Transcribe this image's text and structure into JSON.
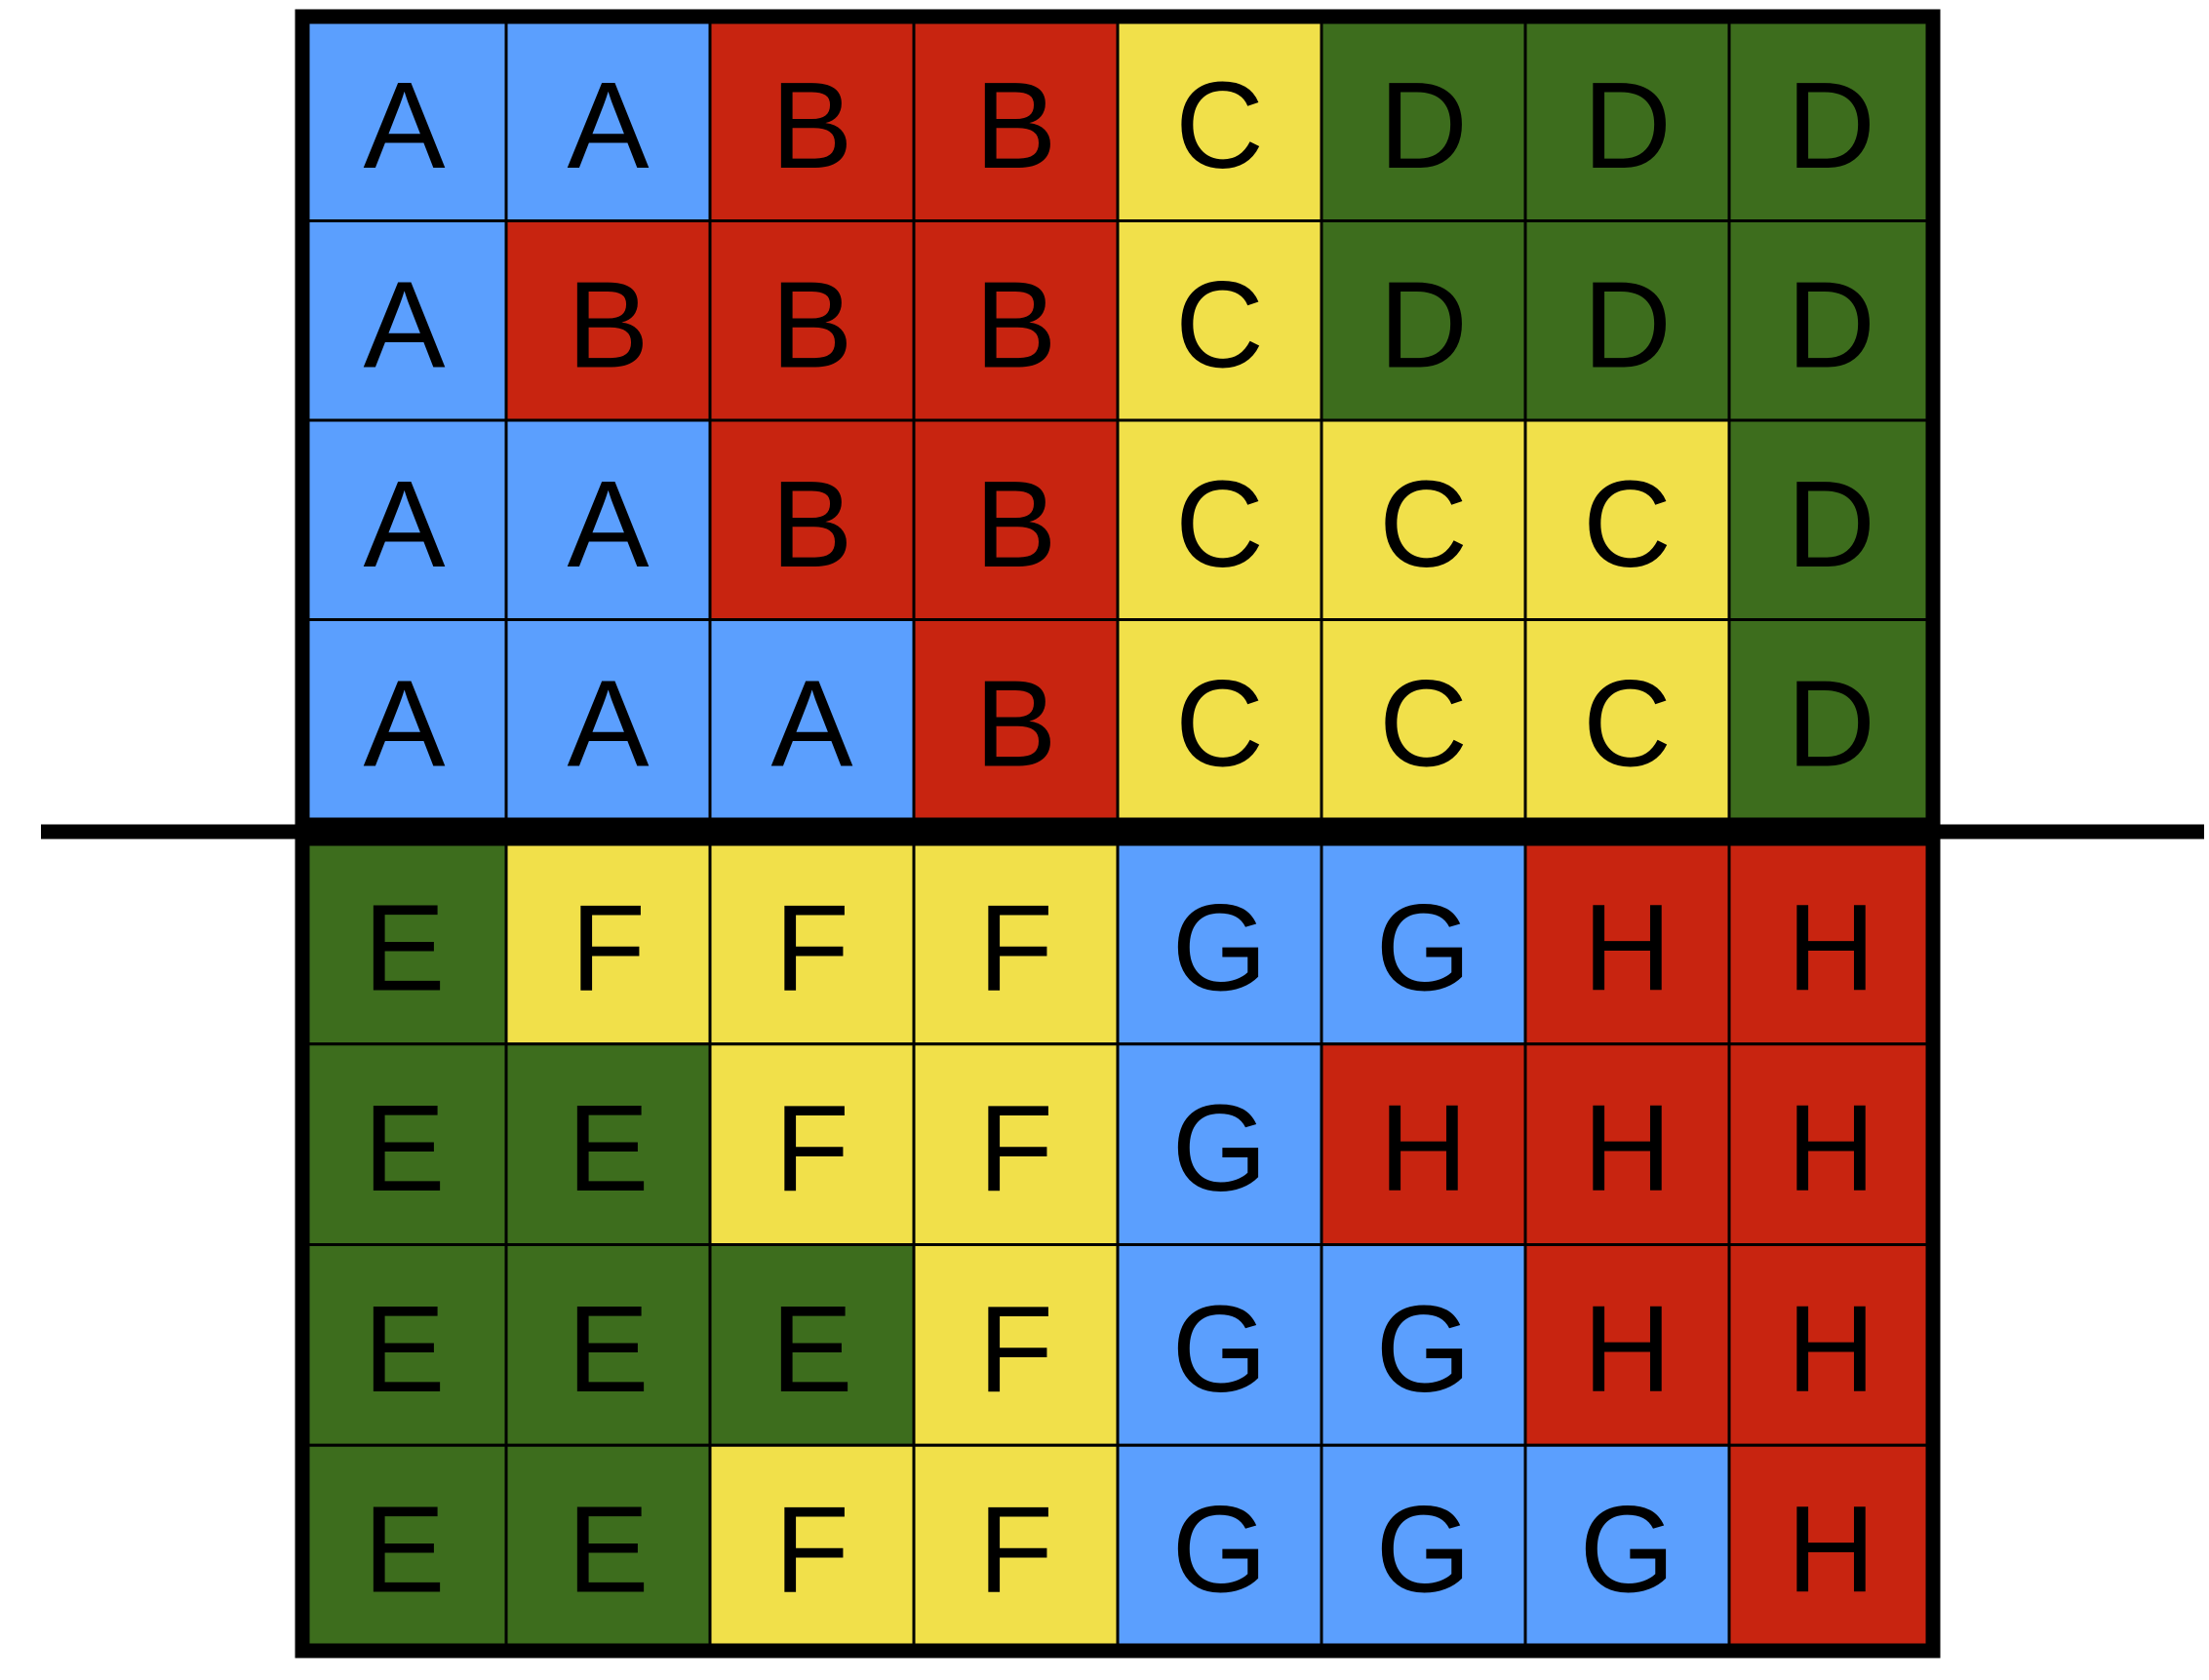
{
  "colors": {
    "blue": "#5b9ffe",
    "red": "#c82410",
    "yellow": "#f1e04a",
    "green": "#3d6d1d",
    "border": "#000000"
  },
  "grid": {
    "rows": 8,
    "cols": 8,
    "divider_after_row": 4,
    "cells": [
      [
        {
          "letter": "A",
          "color": "blue"
        },
        {
          "letter": "A",
          "color": "blue"
        },
        {
          "letter": "B",
          "color": "red"
        },
        {
          "letter": "B",
          "color": "red"
        },
        {
          "letter": "C",
          "color": "yellow"
        },
        {
          "letter": "D",
          "color": "green"
        },
        {
          "letter": "D",
          "color": "green"
        },
        {
          "letter": "D",
          "color": "green"
        }
      ],
      [
        {
          "letter": "A",
          "color": "blue"
        },
        {
          "letter": "B",
          "color": "red"
        },
        {
          "letter": "B",
          "color": "red"
        },
        {
          "letter": "B",
          "color": "red"
        },
        {
          "letter": "C",
          "color": "yellow"
        },
        {
          "letter": "D",
          "color": "green"
        },
        {
          "letter": "D",
          "color": "green"
        },
        {
          "letter": "D",
          "color": "green"
        }
      ],
      [
        {
          "letter": "A",
          "color": "blue"
        },
        {
          "letter": "A",
          "color": "blue"
        },
        {
          "letter": "B",
          "color": "red"
        },
        {
          "letter": "B",
          "color": "red"
        },
        {
          "letter": "C",
          "color": "yellow"
        },
        {
          "letter": "C",
          "color": "yellow"
        },
        {
          "letter": "C",
          "color": "yellow"
        },
        {
          "letter": "D",
          "color": "green"
        }
      ],
      [
        {
          "letter": "A",
          "color": "blue"
        },
        {
          "letter": "A",
          "color": "blue"
        },
        {
          "letter": "A",
          "color": "blue"
        },
        {
          "letter": "B",
          "color": "red"
        },
        {
          "letter": "C",
          "color": "yellow"
        },
        {
          "letter": "C",
          "color": "yellow"
        },
        {
          "letter": "C",
          "color": "yellow"
        },
        {
          "letter": "D",
          "color": "green"
        }
      ],
      [
        {
          "letter": "E",
          "color": "green"
        },
        {
          "letter": "F",
          "color": "yellow"
        },
        {
          "letter": "F",
          "color": "yellow"
        },
        {
          "letter": "F",
          "color": "yellow"
        },
        {
          "letter": "G",
          "color": "blue"
        },
        {
          "letter": "G",
          "color": "blue"
        },
        {
          "letter": "H",
          "color": "red"
        },
        {
          "letter": "H",
          "color": "red"
        }
      ],
      [
        {
          "letter": "E",
          "color": "green"
        },
        {
          "letter": "E",
          "color": "green"
        },
        {
          "letter": "F",
          "color": "yellow"
        },
        {
          "letter": "F",
          "color": "yellow"
        },
        {
          "letter": "G",
          "color": "blue"
        },
        {
          "letter": "H",
          "color": "red"
        },
        {
          "letter": "H",
          "color": "red"
        },
        {
          "letter": "H",
          "color": "red"
        }
      ],
      [
        {
          "letter": "E",
          "color": "green"
        },
        {
          "letter": "E",
          "color": "green"
        },
        {
          "letter": "E",
          "color": "green"
        },
        {
          "letter": "F",
          "color": "yellow"
        },
        {
          "letter": "G",
          "color": "blue"
        },
        {
          "letter": "G",
          "color": "blue"
        },
        {
          "letter": "H",
          "color": "red"
        },
        {
          "letter": "H",
          "color": "red"
        }
      ],
      [
        {
          "letter": "E",
          "color": "green"
        },
        {
          "letter": "E",
          "color": "green"
        },
        {
          "letter": "F",
          "color": "yellow"
        },
        {
          "letter": "F",
          "color": "yellow"
        },
        {
          "letter": "G",
          "color": "blue"
        },
        {
          "letter": "G",
          "color": "blue"
        },
        {
          "letter": "G",
          "color": "blue"
        },
        {
          "letter": "H",
          "color": "red"
        }
      ]
    ]
  }
}
